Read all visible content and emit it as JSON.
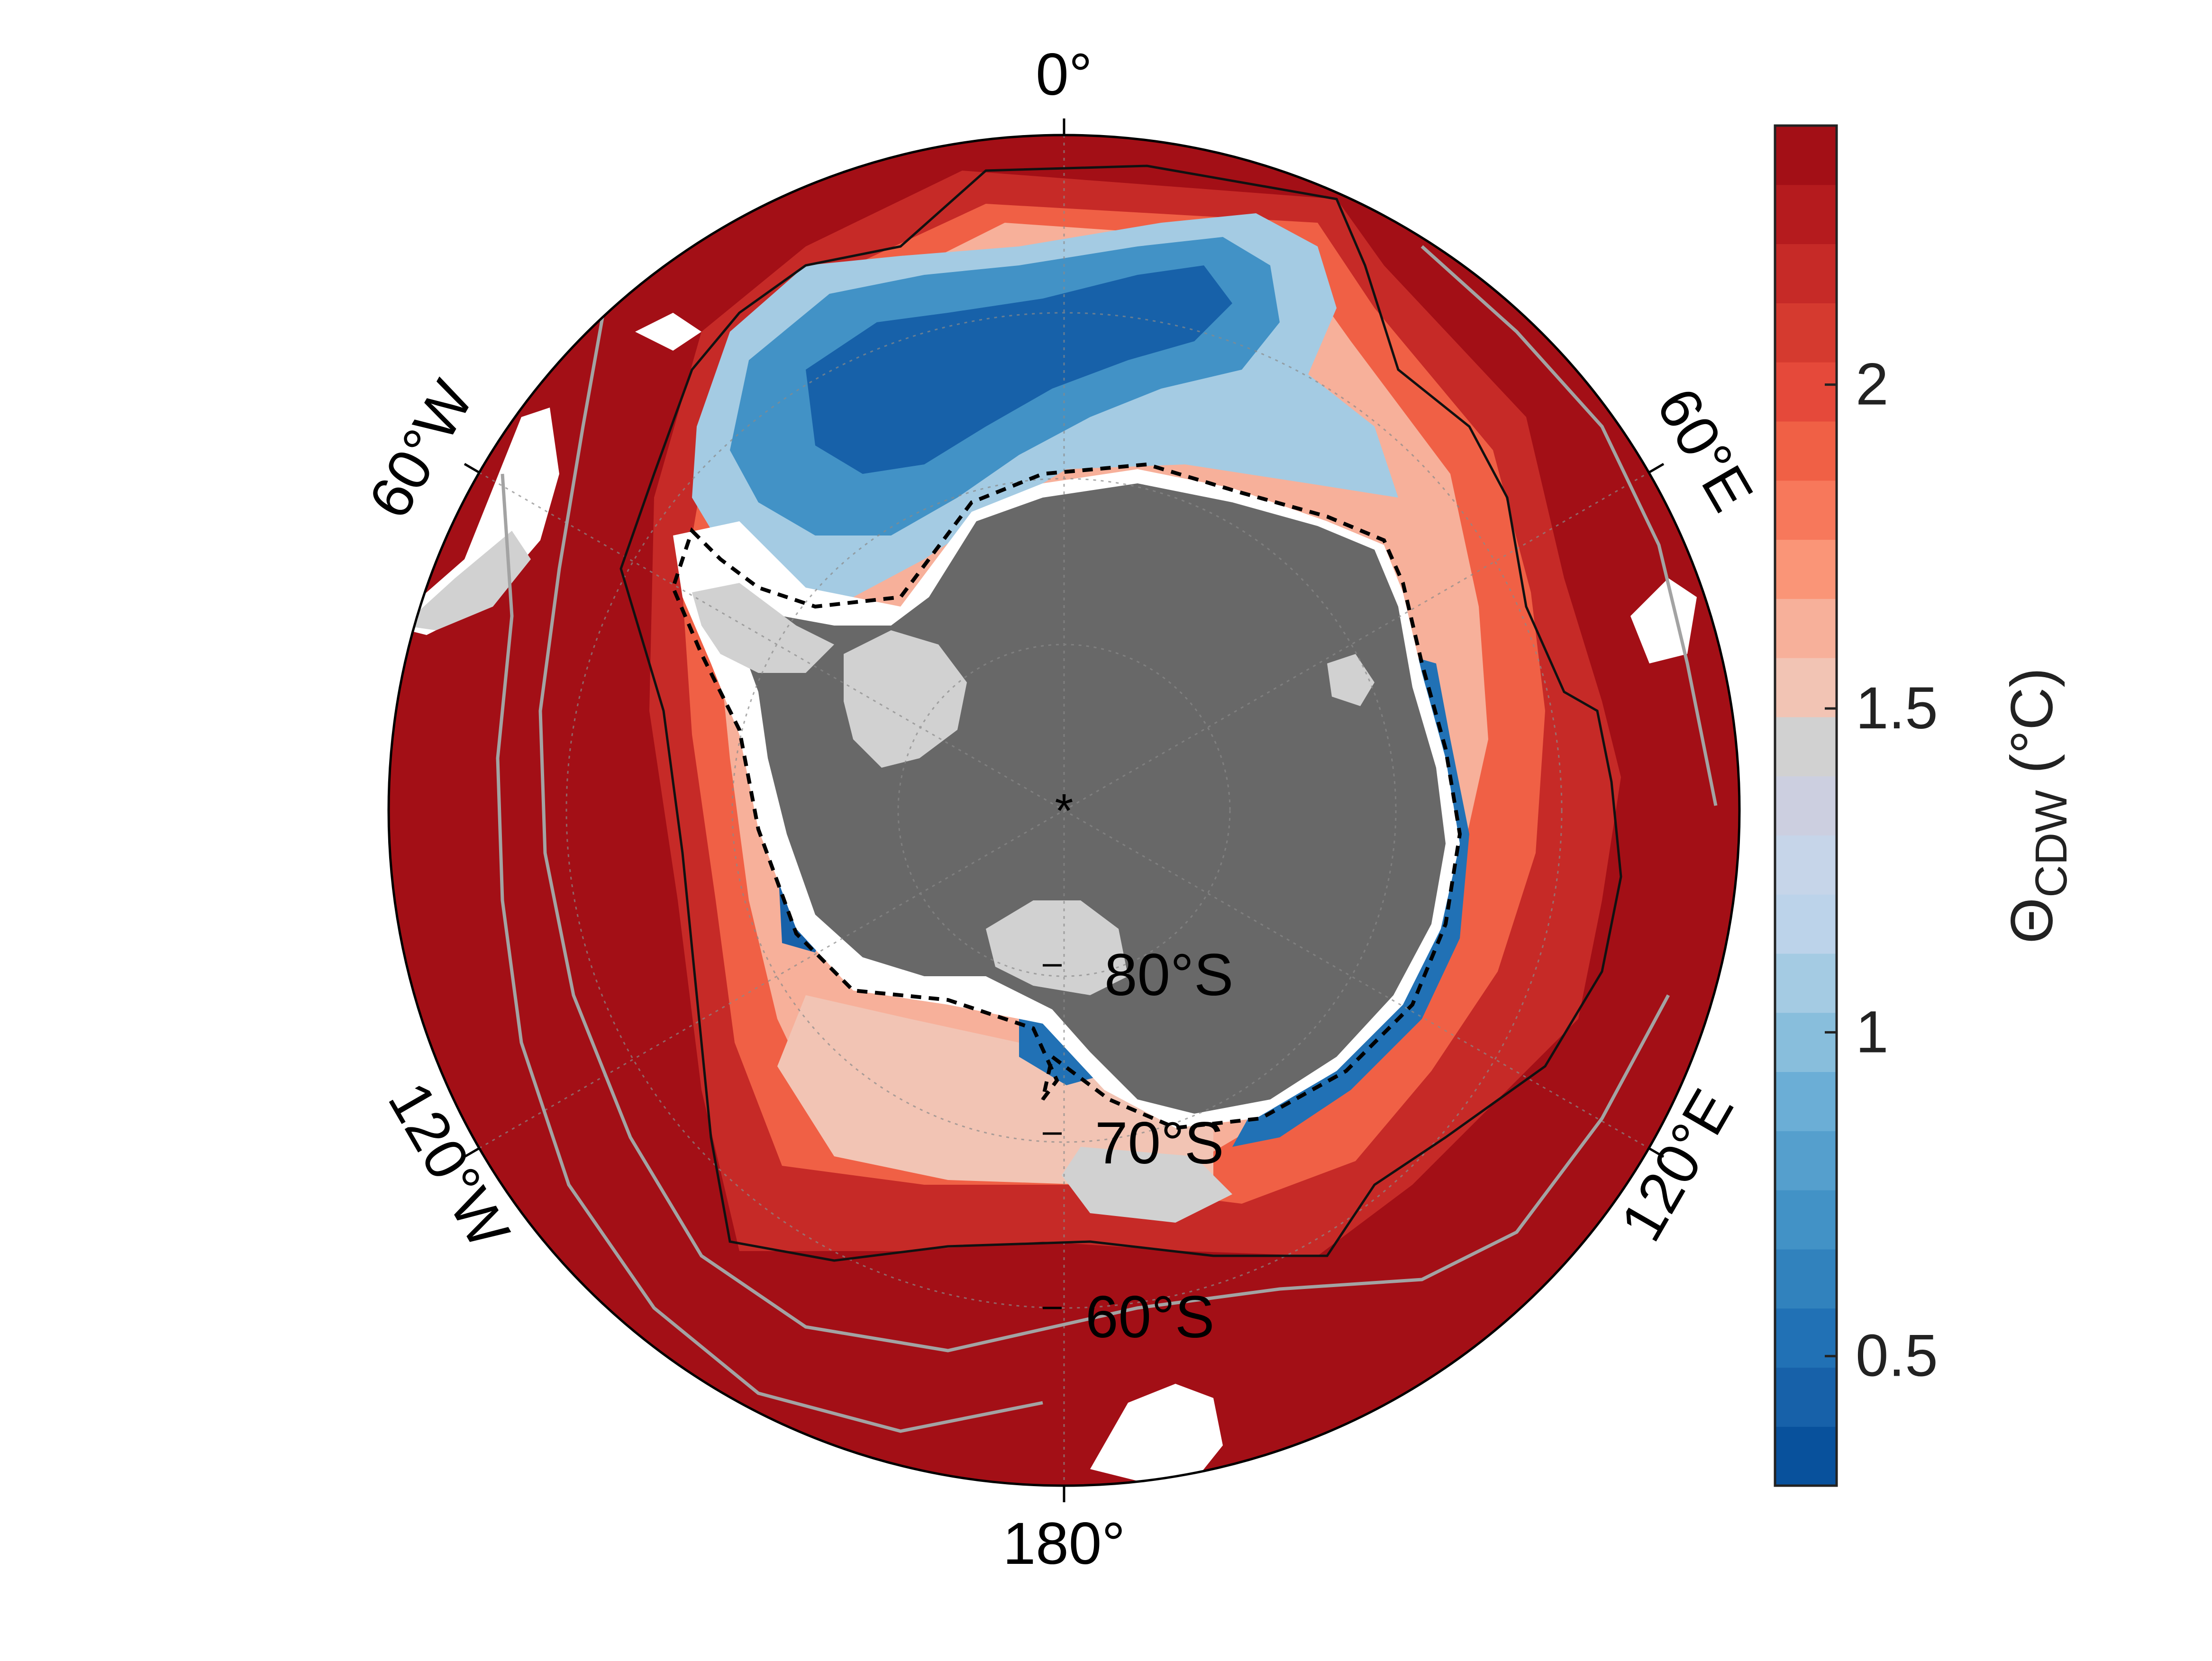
{
  "map": {
    "projection": "south-polar-stereographic",
    "longitude_labels": [
      {
        "name": "lon-label-0",
        "text": "0°"
      },
      {
        "name": "lon-label-60e",
        "text": "60°E"
      },
      {
        "name": "lon-label-120e",
        "text": "120°E"
      },
      {
        "name": "lon-label-180",
        "text": "180°"
      },
      {
        "name": "lon-label-120w",
        "text": "120°W"
      },
      {
        "name": "lon-label-60w",
        "text": "60°W"
      }
    ],
    "latitude_labels": [
      {
        "name": "lat-label-80s",
        "text": "80°S"
      },
      {
        "name": "lat-label-70s",
        "text": "70°S"
      },
      {
        "name": "lat-label-60s",
        "text": "60°S"
      }
    ],
    "pole_marker": "*",
    "colors": {
      "ocean_warm": "#a30f16",
      "ocean_cold": "#0a55a3",
      "land": "#686868",
      "ice_shelf": "#cfcfcf",
      "no_data": "#ffffff",
      "contour_thin": "#111111",
      "front_lines": "#a3a3a3",
      "shelf_break_dashed": "#000000"
    }
  },
  "colorbar": {
    "label_symbol": "Θ",
    "label_subscript": "CDW",
    "label_units": " (°C)",
    "tick_labels": [
      "0.5",
      "1",
      "1.5",
      "2"
    ],
    "ticks": [
      0.5,
      1,
      1.5,
      2
    ],
    "range": [
      0.3,
      2.4
    ],
    "colors": [
      "#08519c",
      "#1761a9",
      "#2171b5",
      "#3182bd",
      "#4292c6",
      "#559fcd",
      "#6baed6",
      "#88bedc",
      "#a4cbe3",
      "#bcd3ea",
      "#c6d5e9",
      "#cccfe0",
      "#d1d1d1",
      "#f2c4b4",
      "#f7b09a",
      "#fa9577",
      "#f7785b",
      "#f06045",
      "#e5493a",
      "#d53a2f",
      "#c62a27",
      "#b51b1e",
      "#a30f16"
    ]
  }
}
